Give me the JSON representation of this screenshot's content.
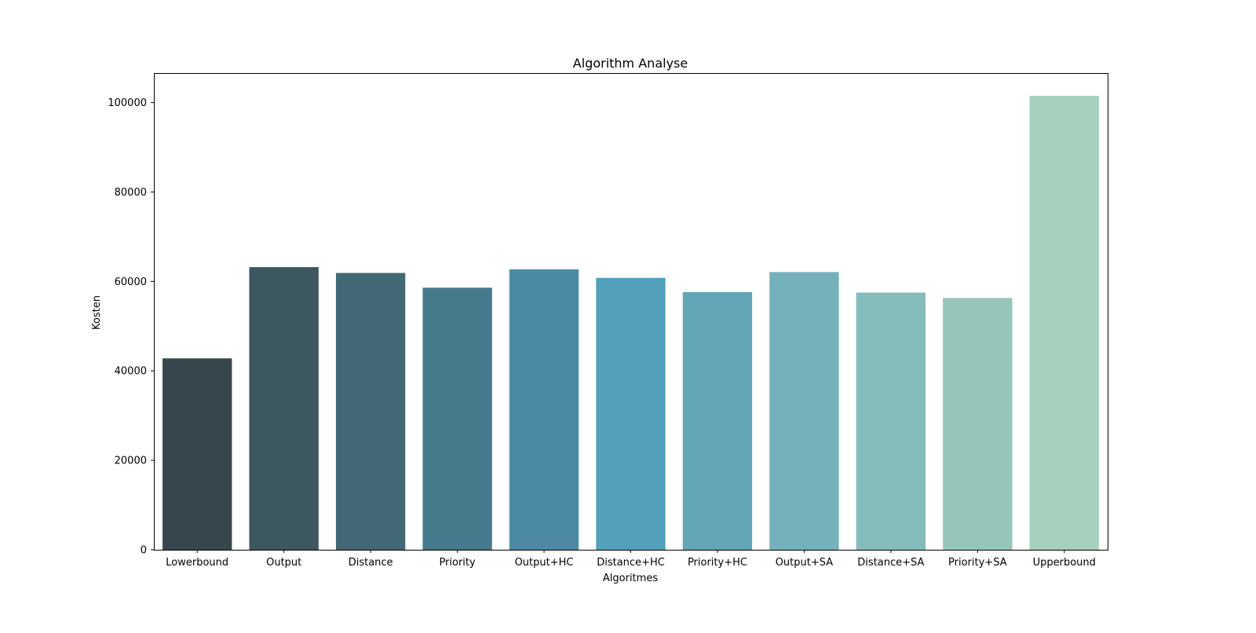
{
  "chart_data": {
    "type": "bar",
    "title": "Algorithm Analyse",
    "xlabel": "Algoritmes",
    "ylabel": "Kosten",
    "categories": [
      "Lowerbound",
      "Output",
      "Distance",
      "Priority",
      "Output+HC",
      "Distance+HC",
      "Priority+HC",
      "Output+SA",
      "Distance+SA",
      "Priority+SA",
      "Upperbound"
    ],
    "values": [
      42800,
      63200,
      61900,
      58600,
      62700,
      60800,
      57600,
      62100,
      57500,
      56300,
      101500
    ],
    "colors": [
      "#37474d",
      "#3d5761",
      "#426875",
      "#477a8c",
      "#4c8aa3",
      "#53a0bb",
      "#62a6b8",
      "#75b1ba",
      "#86bbbb",
      "#96c6ba",
      "#a5d1bd"
    ],
    "yticks": [
      0,
      20000,
      40000,
      60000,
      80000,
      100000
    ],
    "ylim": [
      0,
      106600
    ],
    "grid": false,
    "legend": false
  }
}
